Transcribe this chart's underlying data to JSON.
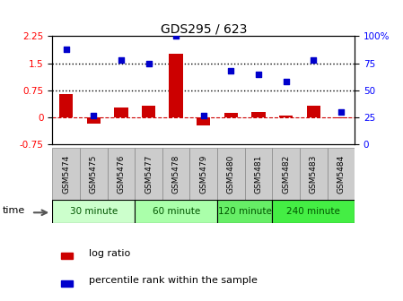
{
  "title": "GDS295 / 623",
  "samples": [
    "GSM5474",
    "GSM5475",
    "GSM5476",
    "GSM5477",
    "GSM5478",
    "GSM5479",
    "GSM5480",
    "GSM5481",
    "GSM5482",
    "GSM5483",
    "GSM5484"
  ],
  "log_ratio": [
    0.65,
    -0.18,
    0.28,
    0.32,
    1.75,
    -0.22,
    0.12,
    0.14,
    0.04,
    0.32,
    -0.03
  ],
  "percentile": [
    88,
    27,
    78,
    75,
    100,
    27,
    68,
    65,
    58,
    78,
    30
  ],
  "groups": [
    {
      "label": "30 minute",
      "indices": [
        0,
        1,
        2
      ],
      "color": "#ccffcc"
    },
    {
      "label": "60 minute",
      "indices": [
        3,
        4,
        5
      ],
      "color": "#aaffaa"
    },
    {
      "label": "120 minute",
      "indices": [
        6,
        7
      ],
      "color": "#66ee66"
    },
    {
      "label": "240 minute",
      "indices": [
        8,
        9,
        10
      ],
      "color": "#44ee44"
    }
  ],
  "bar_color": "#cc0000",
  "dot_color": "#0000cc",
  "ylim_left": [
    -0.75,
    2.25
  ],
  "ylim_right": [
    0,
    100
  ],
  "yticks_left": [
    -0.75,
    0,
    0.75,
    1.5,
    2.25
  ],
  "yticks_right": [
    0,
    25,
    50,
    75,
    100
  ],
  "hline_zero_color": "#cc0000",
  "dotted_line1": 1.5,
  "dotted_line2": 0.75,
  "background_color": "#ffffff",
  "sample_box_color": "#cccccc",
  "time_label": "time",
  "legend_bar_color": "#cc0000",
  "legend_dot_color": "#0000cc"
}
